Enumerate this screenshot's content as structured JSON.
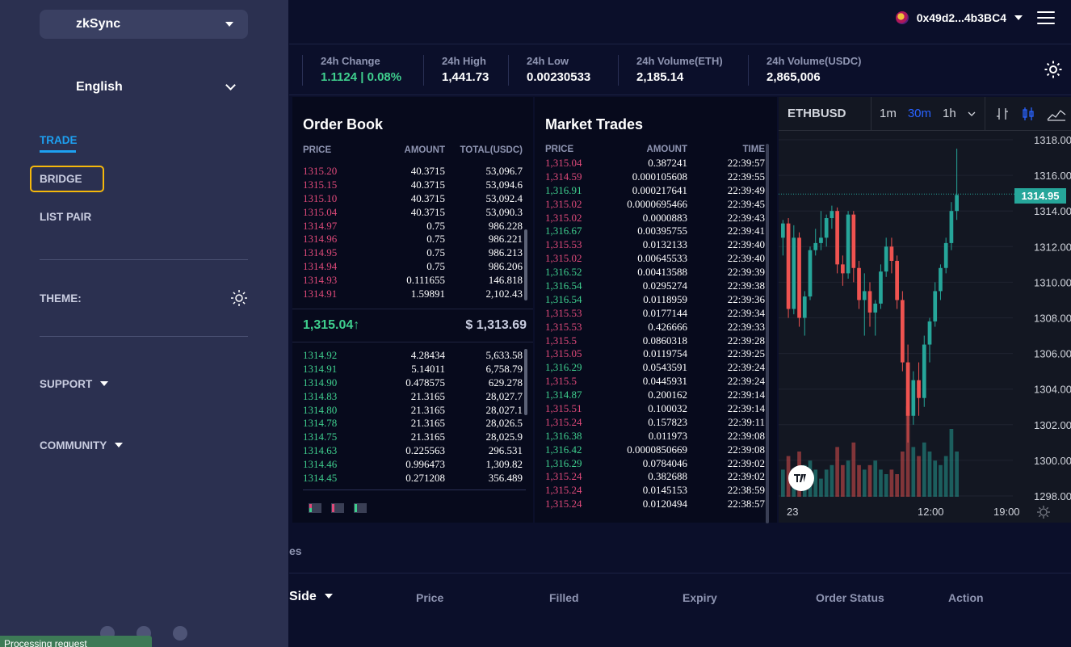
{
  "header": {
    "wallet_address": "0x49d2...4b3BC4",
    "menu_icon": "hamburger-menu-icon"
  },
  "stats": [
    {
      "label": "24h Change",
      "value": "1.1124 | 0.08%",
      "color": "#3fcf8e"
    },
    {
      "label": "24h High",
      "value": "1,441.73"
    },
    {
      "label": "24h Low",
      "value": "0.00230533"
    },
    {
      "label": "24h Volume(ETH)",
      "value": "2,185.14"
    },
    {
      "label": "24h Volume(USDC)",
      "value": "2,865,006"
    }
  ],
  "order_book": {
    "title": "Order Book",
    "headers": [
      "PRICE",
      "AMOUNT",
      "TOTAL(USDC)"
    ],
    "asks": [
      [
        "1315.20",
        "40.3715",
        "53,096.7"
      ],
      [
        "1315.15",
        "40.3715",
        "53,094.6"
      ],
      [
        "1315.10",
        "40.3715",
        "53,092.4"
      ],
      [
        "1315.04",
        "40.3715",
        "53,090.3"
      ],
      [
        "1314.97",
        "0.75",
        "986.228"
      ],
      [
        "1314.96",
        "0.75",
        "986.221"
      ],
      [
        "1314.95",
        "0.75",
        "986.213"
      ],
      [
        "1314.94",
        "0.75",
        "986.206"
      ],
      [
        "1314.93",
        "0.111655",
        "146.818"
      ],
      [
        "1314.91",
        "1.59891",
        "2,102.43"
      ]
    ],
    "last_price": "1,315.04↑",
    "usd_price": "$ 1,313.69",
    "bids": [
      [
        "1314.92",
        "4.28434",
        "5,633.58"
      ],
      [
        "1314.91",
        "5.14011",
        "6,758.79"
      ],
      [
        "1314.90",
        "0.478575",
        "629.278"
      ],
      [
        "1314.83",
        "21.3165",
        "28,027.7"
      ],
      [
        "1314.80",
        "21.3165",
        "28,027.1"
      ],
      [
        "1314.78",
        "21.3165",
        "28,026.5"
      ],
      [
        "1314.75",
        "21.3165",
        "28,025.9"
      ],
      [
        "1314.63",
        "0.225563",
        "296.531"
      ],
      [
        "1314.46",
        "0.996473",
        "1,309.82"
      ],
      [
        "1314.45",
        "0.271208",
        "356.489"
      ]
    ]
  },
  "market_trades": {
    "title": "Market Trades",
    "headers": [
      "PRICE",
      "AMOUNT",
      "TIME"
    ],
    "rows": [
      {
        "price": "1,315.04",
        "amount": "0.387241",
        "time": "22:39:57",
        "side": "sell"
      },
      {
        "price": "1,314.59",
        "amount": "0.000105608",
        "time": "22:39:55",
        "side": "sell"
      },
      {
        "price": "1,316.91",
        "amount": "0.000217641",
        "time": "22:39:49",
        "side": "buy"
      },
      {
        "price": "1,315.02",
        "amount": "0.0000695466",
        "time": "22:39:45",
        "side": "sell"
      },
      {
        "price": "1,315.02",
        "amount": "0.0000883",
        "time": "22:39:43",
        "side": "sell"
      },
      {
        "price": "1,316.67",
        "amount": "0.00395755",
        "time": "22:39:41",
        "side": "buy"
      },
      {
        "price": "1,315.53",
        "amount": "0.0132133",
        "time": "22:39:40",
        "side": "sell"
      },
      {
        "price": "1,315.02",
        "amount": "0.00645533",
        "time": "22:39:40",
        "side": "sell"
      },
      {
        "price": "1,316.52",
        "amount": "0.00413588",
        "time": "22:39:39",
        "side": "buy"
      },
      {
        "price": "1,316.54",
        "amount": "0.0295274",
        "time": "22:39:38",
        "side": "buy"
      },
      {
        "price": "1,316.54",
        "amount": "0.0118959",
        "time": "22:39:36",
        "side": "buy"
      },
      {
        "price": "1,315.53",
        "amount": "0.0177144",
        "time": "22:39:34",
        "side": "sell"
      },
      {
        "price": "1,315.53",
        "amount": "0.426666",
        "time": "22:39:33",
        "side": "sell"
      },
      {
        "price": "1,315.5",
        "amount": "0.0860318",
        "time": "22:39:28",
        "side": "sell"
      },
      {
        "price": "1,315.05",
        "amount": "0.0119754",
        "time": "22:39:25",
        "side": "sell"
      },
      {
        "price": "1,316.29",
        "amount": "0.0543591",
        "time": "22:39:24",
        "side": "buy"
      },
      {
        "price": "1,315.5",
        "amount": "0.0445931",
        "time": "22:39:24",
        "side": "sell"
      },
      {
        "price": "1,314.87",
        "amount": "0.200162",
        "time": "22:39:14",
        "side": "buy"
      },
      {
        "price": "1,315.51",
        "amount": "0.100032",
        "time": "22:39:14",
        "side": "sell"
      },
      {
        "price": "1,315.24",
        "amount": "0.157823",
        "time": "22:39:11",
        "side": "sell"
      },
      {
        "price": "1,316.38",
        "amount": "0.011973",
        "time": "22:39:08",
        "side": "buy"
      },
      {
        "price": "1,316.42",
        "amount": "0.0000850669",
        "time": "22:39:08",
        "side": "buy"
      },
      {
        "price": "1,316.29",
        "amount": "0.0784046",
        "time": "22:39:02",
        "side": "buy"
      },
      {
        "price": "1,315.24",
        "amount": "0.382688",
        "time": "22:39:02",
        "side": "sell"
      },
      {
        "price": "1,315.24",
        "amount": "0.0145153",
        "time": "22:38:59",
        "side": "sell"
      },
      {
        "price": "1,315.24",
        "amount": "0.0120494",
        "time": "22:38:57",
        "side": "sell"
      }
    ]
  },
  "chart": {
    "symbol": "ETHBUSD",
    "intervals": [
      "1m",
      "30m",
      "1h"
    ],
    "active_interval": "30m",
    "y_ticks": [
      "1318.00",
      "1316.00",
      "1314.00",
      "1312.00",
      "1310.00",
      "1308.00",
      "1306.00",
      "1304.00",
      "1302.00",
      "1300.00",
      "1298.00"
    ],
    "x_ticks": [
      "23",
      "12:00",
      "19:00"
    ],
    "last_price": "1314.95",
    "up_color": "#26a69a",
    "down_color": "#ef5350"
  },
  "chart_data": {
    "type": "candlestick",
    "y_range": [
      1297.5,
      1318.5
    ],
    "candles": [
      [
        1312.5,
        1313.5,
        1311.5,
        1313.3
      ],
      [
        1313.3,
        1313.6,
        1308.0,
        1308.5
      ],
      [
        1308.5,
        1313.2,
        1308.2,
        1312.5
      ],
      [
        1312.5,
        1312.8,
        1307.5,
        1308.0
      ],
      [
        1308.0,
        1309.5,
        1307.0,
        1309.2
      ],
      [
        1309.2,
        1312.0,
        1309.0,
        1311.8
      ],
      [
        1311.8,
        1313.0,
        1311.5,
        1312.2
      ],
      [
        1312.2,
        1314.0,
        1311.8,
        1312.5
      ],
      [
        1312.5,
        1313.8,
        1312.0,
        1313.6
      ],
      [
        1313.6,
        1314.3,
        1313.0,
        1314.0
      ],
      [
        1314.0,
        1314.2,
        1310.5,
        1311.0
      ],
      [
        1311.0,
        1311.5,
        1309.8,
        1310.5
      ],
      [
        1310.5,
        1314.0,
        1310.2,
        1313.8
      ],
      [
        1313.8,
        1314.0,
        1310.0,
        1310.8
      ],
      [
        1310.8,
        1311.2,
        1308.5,
        1309.0
      ],
      [
        1309.0,
        1310.5,
        1307.0,
        1309.5
      ],
      [
        1309.5,
        1310.0,
        1307.5,
        1308.3
      ],
      [
        1308.3,
        1309.0,
        1307.0,
        1308.8
      ],
      [
        1308.8,
        1311.0,
        1308.5,
        1310.6
      ],
      [
        1310.6,
        1312.5,
        1310.3,
        1312.0
      ],
      [
        1312.0,
        1312.5,
        1310.5,
        1311.2
      ],
      [
        1311.2,
        1311.5,
        1308.5,
        1309.0
      ],
      [
        1309.0,
        1309.5,
        1305.0,
        1305.5
      ],
      [
        1305.5,
        1306.5,
        1301.0,
        1302.5
      ],
      [
        1302.5,
        1305.0,
        1302.0,
        1304.5
      ],
      [
        1304.5,
        1305.5,
        1302.5,
        1303.5
      ],
      [
        1303.5,
        1307.0,
        1303.0,
        1306.5
      ],
      [
        1306.5,
        1308.0,
        1305.5,
        1307.8
      ],
      [
        1307.8,
        1310.0,
        1307.5,
        1309.5
      ],
      [
        1309.5,
        1311.0,
        1309.0,
        1310.8
      ],
      [
        1310.8,
        1312.5,
        1310.5,
        1312.2
      ],
      [
        1312.2,
        1314.5,
        1311.8,
        1314.0
      ],
      [
        1314.0,
        1317.5,
        1313.5,
        1314.9
      ]
    ],
    "volumes": [
      0.3,
      0.45,
      0.25,
      0.5,
      0.35,
      0.4,
      0.3,
      0.2,
      0.3,
      0.35,
      0.55,
      0.35,
      0.4,
      0.6,
      0.35,
      0.3,
      0.35,
      0.4,
      0.3,
      0.25,
      0.3,
      0.25,
      0.5,
      1.0,
      0.55,
      0.45,
      0.6,
      0.5,
      0.4,
      0.35,
      0.45,
      0.75,
      0.5
    ],
    "x_labels": [
      "23",
      "12:00",
      "19:00"
    ]
  },
  "bottom": {
    "tab_partial": "es",
    "headers": [
      "Side",
      "Price",
      "Filled",
      "Expiry",
      "Order Status",
      "Action"
    ]
  },
  "sidebar": {
    "network": "zkSync",
    "language": "English",
    "nav": [
      "TRADE",
      "BRIDGE",
      "LIST PAIR"
    ],
    "theme_label": "THEME:",
    "support": "SUPPORT",
    "community": "COMMUNITY",
    "accent": "#1da1f2",
    "highlight": "#f5b80b"
  },
  "toast": {
    "message": "Processing request"
  }
}
